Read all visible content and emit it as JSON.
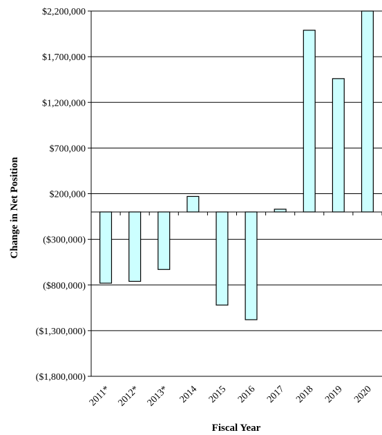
{
  "chart_data": {
    "type": "bar",
    "title": "",
    "xlabel": "Fiscal Year",
    "ylabel": "Change in Net Position",
    "categories": [
      "2011*",
      "2012*",
      "2013*",
      "2014",
      "2015",
      "2016",
      "2017",
      "2018",
      "2019",
      "2020"
    ],
    "values": [
      -780000,
      -760000,
      -630000,
      170000,
      -1020000,
      -1180000,
      30000,
      1990000,
      1460000,
      2200000
    ],
    "ylim": [
      -1800000,
      2200000
    ],
    "yticks": [
      2200000,
      1700000,
      1200000,
      700000,
      200000,
      -300000,
      -800000,
      -1300000,
      -1800000
    ],
    "ytick_labels": [
      "$2,200,000",
      "$1,700,000",
      "$1,200,000",
      "$700,000",
      "$200,000",
      "($300,000)",
      "($800,000)",
      "($1,300,000)",
      "($1,800,000)"
    ],
    "grid": true,
    "legend": "none",
    "bar_color": "#ccffff"
  }
}
